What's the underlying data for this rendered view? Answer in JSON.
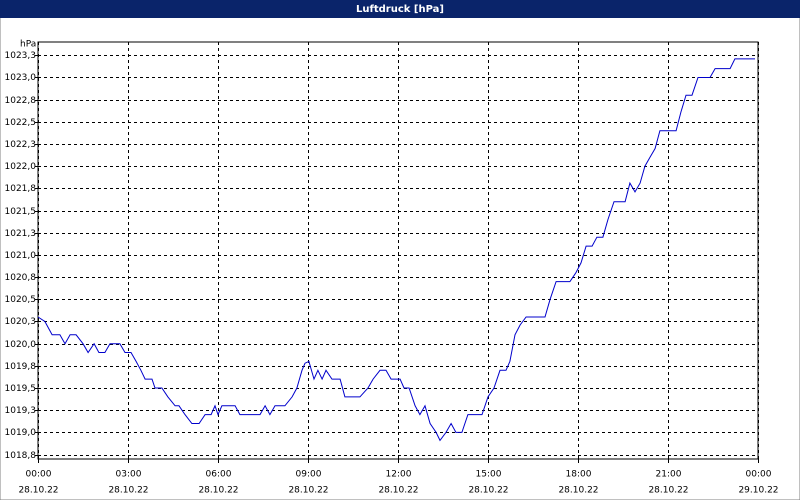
{
  "chart_data": {
    "type": "line",
    "title": "Luftdruck [hPa]",
    "y_label": "hPa",
    "color": "#0000cc",
    "grid": true,
    "xlim": [
      0,
      24
    ],
    "ylim": [
      1018.7,
      1023.4
    ],
    "xticks": [
      {
        "value": 0,
        "label": "00:00",
        "date": "28.10.22"
      },
      {
        "value": 3,
        "label": "03:00",
        "date": "28.10.22"
      },
      {
        "value": 6,
        "label": "06:00",
        "date": "28.10.22"
      },
      {
        "value": 9,
        "label": "09:00",
        "date": "28.10.22"
      },
      {
        "value": 12,
        "label": "12:00",
        "date": "28.10.22"
      },
      {
        "value": 15,
        "label": "15:00",
        "date": "28.10.22"
      },
      {
        "value": 18,
        "label": "18:00",
        "date": "28.10.22"
      },
      {
        "value": 21,
        "label": "21:00",
        "date": "28.10.22"
      },
      {
        "value": 24,
        "label": "00:00",
        "date": "29.10.22"
      }
    ],
    "yticks": [
      {
        "value": 1018.75,
        "label": "1018,8"
      },
      {
        "value": 1019,
        "label": "1019,0"
      },
      {
        "value": 1019.25,
        "label": "1019,3"
      },
      {
        "value": 1019.5,
        "label": "1019,5"
      },
      {
        "value": 1019.75,
        "label": "1019,8"
      },
      {
        "value": 1020,
        "label": "1020,0"
      },
      {
        "value": 1020.25,
        "label": "1020,3"
      },
      {
        "value": 1020.5,
        "label": "1020,5"
      },
      {
        "value": 1020.75,
        "label": "1020,8"
      },
      {
        "value": 1021,
        "label": "1021,0"
      },
      {
        "value": 1021.25,
        "label": "1021,3"
      },
      {
        "value": 1021.5,
        "label": "1021,5"
      },
      {
        "value": 1021.75,
        "label": "1021,8"
      },
      {
        "value": 1022,
        "label": "1022,0"
      },
      {
        "value": 1022.25,
        "label": "1022,3"
      },
      {
        "value": 1022.5,
        "label": "1022,5"
      },
      {
        "value": 1022.75,
        "label": "1022,8"
      },
      {
        "value": 1023,
        "label": "1023,0"
      },
      {
        "value": 1023.25,
        "label": "1023,3"
      }
    ],
    "x": [
      0,
      0.23,
      0.47,
      0.73,
      0.9,
      1.07,
      1.27,
      1.5,
      1.67,
      1.87,
      2.03,
      2.23,
      2.4,
      2.73,
      2.9,
      3.1,
      3.27,
      3.43,
      3.57,
      3.8,
      3.9,
      4.13,
      4.33,
      4.57,
      4.7,
      4.9,
      5.13,
      5.37,
      5.57,
      5.77,
      5.9,
      6,
      6.13,
      6.57,
      6.73,
      7.4,
      7.57,
      7.73,
      7.9,
      8.23,
      8.47,
      8.63,
      8.8,
      8.9,
      9.03,
      9.2,
      9.33,
      9.47,
      9.6,
      9.8,
      10.07,
      10.23,
      10.73,
      11,
      11.17,
      11.4,
      11.6,
      11.77,
      12.07,
      12.2,
      12.37,
      12.57,
      12.73,
      12.9,
      13.07,
      13.27,
      13.4,
      13.6,
      13.77,
      13.93,
      14.13,
      14.33,
      14.8,
      15,
      15.2,
      15.4,
      15.6,
      15.73,
      15.9,
      16.07,
      16.27,
      16.9,
      17.07,
      17.27,
      17.73,
      17.93,
      18.1,
      18.27,
      18.47,
      18.63,
      18.83,
      19,
      19.2,
      19.57,
      19.73,
      19.9,
      20.07,
      20.23,
      20.4,
      20.57,
      20.73,
      21.27,
      21.43,
      21.6,
      21.8,
      22,
      22.4,
      22.57,
      23.07,
      23.23,
      23.9
    ],
    "values": [
      1020.3,
      1020.25,
      1020.1,
      1020.1,
      1020.0,
      1020.1,
      1020.1,
      1020.0,
      1019.9,
      1020.0,
      1019.9,
      1019.9,
      1020.0,
      1020.0,
      1019.9,
      1019.9,
      1019.8,
      1019.7,
      1019.6,
      1019.6,
      1019.5,
      1019.5,
      1019.4,
      1019.3,
      1019.3,
      1019.2,
      1019.1,
      1019.1,
      1019.2,
      1019.2,
      1019.3,
      1019.2,
      1019.3,
      1019.3,
      1019.2,
      1019.2,
      1019.3,
      1019.2,
      1019.3,
      1019.3,
      1019.4,
      1019.5,
      1019.7,
      1019.78,
      1019.8,
      1019.6,
      1019.7,
      1019.6,
      1019.7,
      1019.6,
      1019.6,
      1019.4,
      1019.4,
      1019.5,
      1019.6,
      1019.7,
      1019.7,
      1019.6,
      1019.6,
      1019.5,
      1019.5,
      1019.3,
      1019.2,
      1019.3,
      1019.1,
      1019.0,
      1018.91,
      1019.0,
      1019.1,
      1019.0,
      1019.0,
      1019.2,
      1019.2,
      1019.4,
      1019.5,
      1019.7,
      1019.7,
      1019.8,
      1020.1,
      1020.21,
      1020.3,
      1020.3,
      1020.5,
      1020.7,
      1020.7,
      1020.8,
      1020.91,
      1021.1,
      1021.1,
      1021.2,
      1021.2,
      1021.4,
      1021.6,
      1021.6,
      1021.81,
      1021.71,
      1021.81,
      1022.0,
      1022.1,
      1022.2,
      1022.4,
      1022.4,
      1022.61,
      1022.8,
      1022.8,
      1023.0,
      1023.0,
      1023.1,
      1023.1,
      1023.21,
      1023.21
    ]
  }
}
